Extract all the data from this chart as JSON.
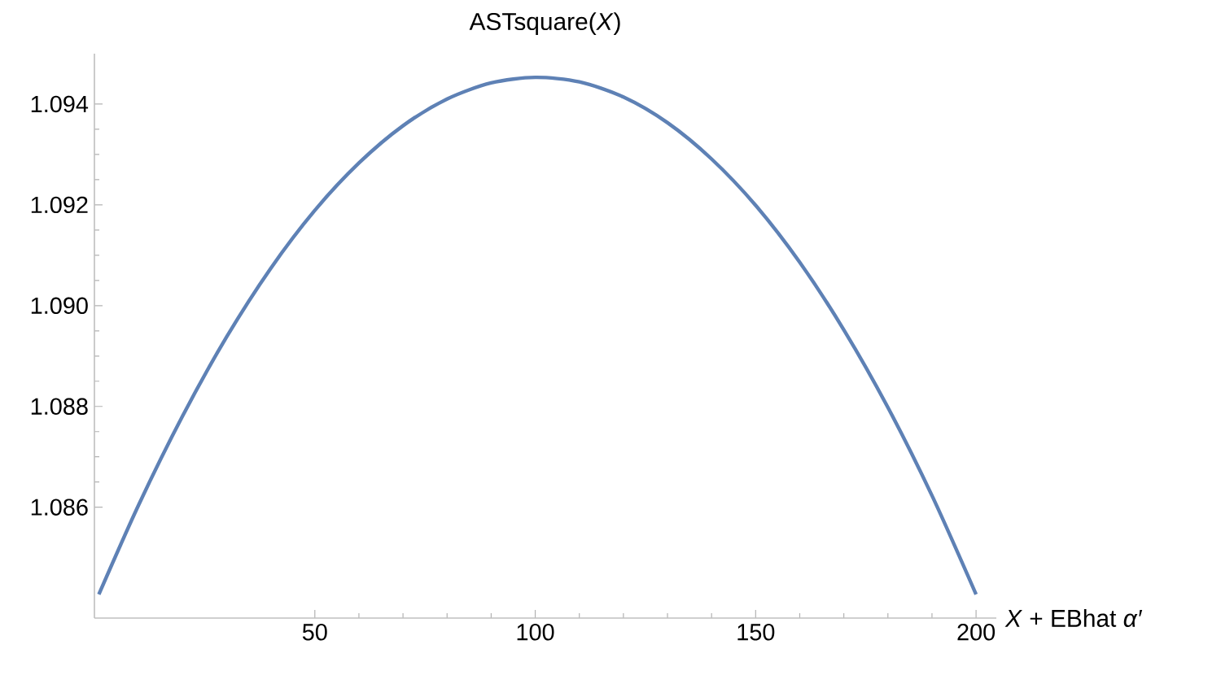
{
  "chart_data": {
    "type": "line",
    "title": "ASTsquare(*X*)",
    "xlabel": "*X* + EBhat *α′*",
    "x": [
      1,
      10,
      20,
      30,
      40,
      50,
      60,
      70,
      80,
      90,
      100,
      110,
      120,
      130,
      140,
      150,
      160,
      170,
      180,
      190,
      200
    ],
    "series": [
      {
        "color": "#5e81b5",
        "values": [
          1.08427,
          1.08604,
          1.08781,
          1.08938,
          1.09074,
          1.09189,
          1.09283,
          1.09357,
          1.0941,
          1.09442,
          1.09453,
          1.09444,
          1.09414,
          1.09363,
          1.09291,
          1.09199,
          1.09086,
          1.08952,
          1.08798,
          1.08623,
          1.08427
        ]
      }
    ],
    "xlim": [
      0,
      204.6
    ],
    "ylim": [
      1.0838,
      1.095
    ],
    "xticks": [
      50,
      100,
      150,
      200
    ],
    "yticks": [
      1.086,
      1.088,
      {
        "value": 1.09,
        "label": "1.090"
      },
      1.092,
      1.094
    ]
  }
}
